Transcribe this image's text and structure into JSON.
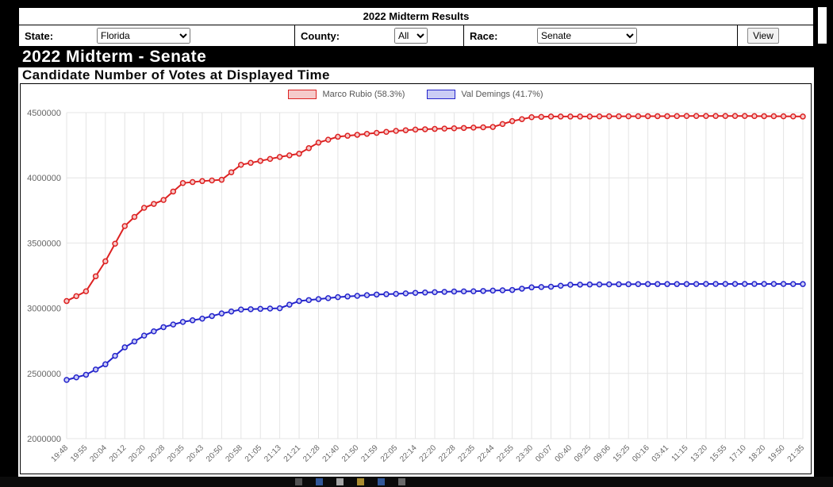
{
  "header": {
    "title": "2022 Midterm Results"
  },
  "form": {
    "state_label": "State:",
    "state_value": "Florida",
    "county_label": "County:",
    "county_value": "All",
    "race_label": "Race:",
    "race_value": "Senate",
    "view_button": "View"
  },
  "heading": "2022 Midterm - Senate",
  "subheading": "Candidate Number of Votes at Displayed Time",
  "chart_data": {
    "type": "line",
    "title": "Candidate Number of Votes at Displayed Time",
    "xlabel": "",
    "ylabel": "",
    "grid": true,
    "legend_position": "top",
    "ylim": [
      2000000,
      4500000
    ],
    "yticks": [
      2000000,
      2500000,
      3000000,
      3500000,
      4000000,
      4500000
    ],
    "x": [
      "19:48",
      "19:55",
      "20:04",
      "20:12",
      "20:20",
      "20:28",
      "20:35",
      "20:43",
      "20:50",
      "20:58",
      "21:05",
      "21:13",
      "21:21",
      "21:28",
      "21:40",
      "21:50",
      "21:59",
      "22:05",
      "22:14",
      "22:20",
      "22:28",
      "22:35",
      "22:44",
      "22:55",
      "23:30",
      "00:07",
      "00:40",
      "09:25",
      "09:06",
      "15:25",
      "00:16",
      "03:41",
      "11:15",
      "13:20",
      "15:55",
      "17:10",
      "18:20",
      "19:50",
      "21:35"
    ],
    "series": [
      {
        "name": "Marco Rubio (58.3%)",
        "color": "#dd2222",
        "fill": "#f5caca",
        "values": [
          3055000,
          3130000,
          3360000,
          3630000,
          3770000,
          3830000,
          3960000,
          3975000,
          3985000,
          4100000,
          4130000,
          4160000,
          4185000,
          4270000,
          4315000,
          4330000,
          4345000,
          4360000,
          4370000,
          4375000,
          4380000,
          4385000,
          4390000,
          4435000,
          4465000,
          4470000,
          4470000,
          4470000,
          4472000,
          4472000,
          4473000,
          4473000,
          4474000,
          4474000,
          4474000,
          4474000,
          4473000,
          4472000,
          4470000
        ]
      },
      {
        "name": "Val Demings (41.7%)",
        "color": "#2424cc",
        "fill": "#caccf5",
        "values": [
          2450000,
          2490000,
          2570000,
          2700000,
          2790000,
          2855000,
          2895000,
          2920000,
          2960000,
          2990000,
          2995000,
          3000000,
          3055000,
          3070000,
          3085000,
          3095000,
          3105000,
          3110000,
          3118000,
          3123000,
          3128000,
          3130000,
          3135000,
          3140000,
          3160000,
          3165000,
          3180000,
          3182000,
          3183000,
          3184000,
          3185000,
          3185000,
          3185000,
          3186000,
          3186000,
          3186000,
          3186000,
          3186000,
          3185000
        ]
      }
    ]
  },
  "taskbar": {
    "icons": [
      {
        "name": "taskbar-icon-1",
        "color": "#6b6b6b"
      },
      {
        "name": "taskbar-icon-2",
        "color": "#3f71c8"
      },
      {
        "name": "taskbar-icon-3",
        "color": "#d9d9d9"
      },
      {
        "name": "taskbar-icon-4",
        "color": "#e0b83e"
      },
      {
        "name": "taskbar-icon-5",
        "color": "#3f71c8"
      },
      {
        "name": "taskbar-icon-6",
        "color": "#8a8a8a"
      }
    ]
  }
}
